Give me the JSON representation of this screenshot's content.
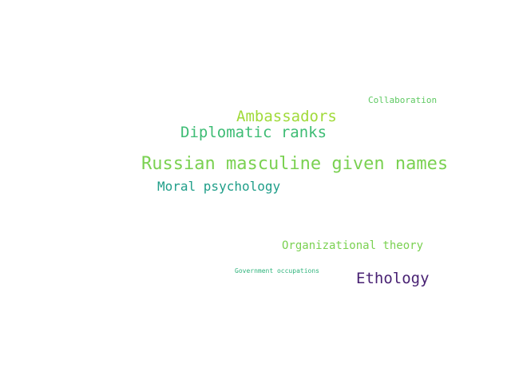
{
  "words": [
    {
      "text": "Collaboration",
      "color": "#5ec962"
    },
    {
      "text": "Ambassadors",
      "color": "#a0da39"
    },
    {
      "text": "Diplomatic ranks",
      "color": "#3dbc74"
    },
    {
      "text": "Russian masculine given names",
      "color": "#7ad151"
    },
    {
      "text": "Moral psychology",
      "color": "#1f9e89"
    },
    {
      "text": "Organizational theory",
      "color": "#7ad151"
    },
    {
      "text": "Government occupations",
      "color": "#2fb47c"
    },
    {
      "text": "Ethology",
      "color": "#482173"
    }
  ]
}
